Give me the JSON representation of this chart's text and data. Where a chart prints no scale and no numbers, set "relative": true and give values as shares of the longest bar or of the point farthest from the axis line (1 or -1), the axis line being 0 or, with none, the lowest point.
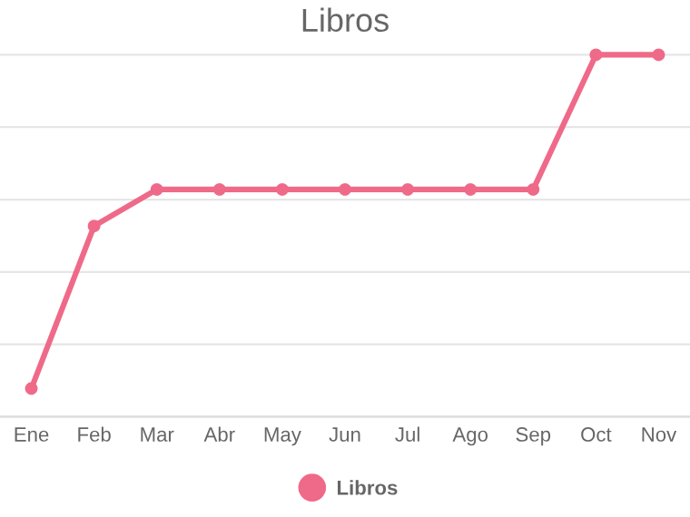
{
  "chart_data": {
    "type": "line",
    "title": "Libros",
    "relative": true,
    "categories": [
      "Ene",
      "Feb",
      "Mar",
      "Abr",
      "May",
      "Jun",
      "Jul",
      "Ago",
      "Sep",
      "Oct",
      "Nov"
    ],
    "series": [
      {
        "name": "Libros",
        "color": "#ef6a88",
        "values": [
          0.078,
          0.527,
          0.628,
          0.628,
          0.628,
          0.628,
          0.628,
          0.628,
          0.628,
          1,
          1
        ]
      }
    ],
    "marker": "circle",
    "line_style": "solid",
    "legend": "bottom",
    "grid": "y"
  }
}
